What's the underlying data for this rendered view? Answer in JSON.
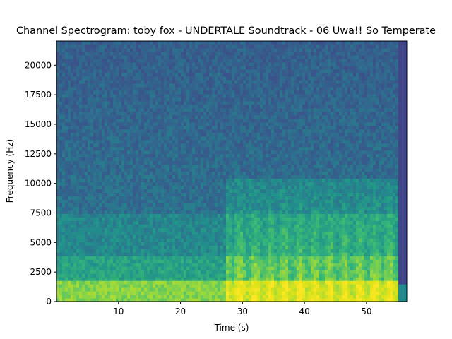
{
  "chart_data": {
    "type": "heatmap",
    "title": "Channel Spectrogram: toby fox - UNDERTALE Soundtrack - 06 Uwa!! So Temperate",
    "xlabel": "Time (s)",
    "ylabel": "Frequency (Hz)",
    "xlim": [
      0,
      56.5
    ],
    "ylim": [
      0,
      22050
    ],
    "x_ticks": [
      10,
      20,
      30,
      40,
      50
    ],
    "y_ticks": [
      0,
      2500,
      5000,
      7500,
      10000,
      12500,
      15000,
      17500,
      20000
    ],
    "colormap": "viridis",
    "colors": {
      "low": "#3b528b",
      "mid": "#21908d",
      "high": "#fde725"
    },
    "grid": false,
    "legend": "none",
    "features": {
      "audio_end_s": 55.0,
      "dense_section_start_s": 27.5,
      "dense_section_max_freq_hz": 10500,
      "low_band_max_freq_hz": 1700
    }
  }
}
